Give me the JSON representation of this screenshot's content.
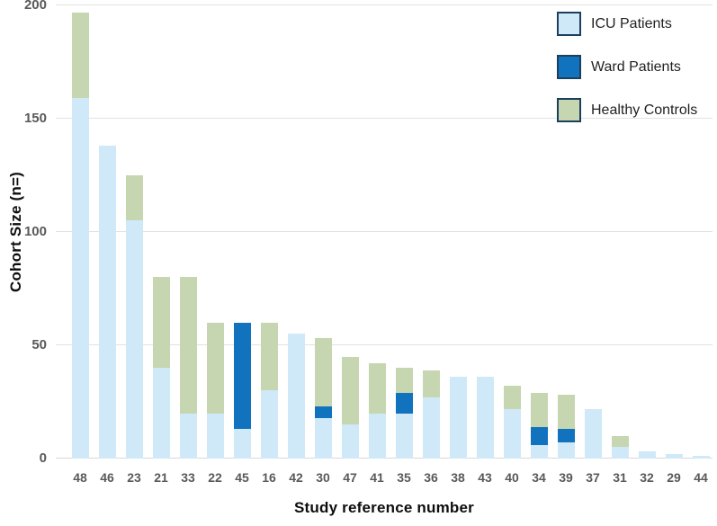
{
  "chart_data": {
    "type": "bar",
    "stacked": true,
    "xlabel": "Study reference number",
    "ylabel": "Cohort Size (n=)",
    "ylim": [
      0,
      200
    ],
    "yticks": [
      0,
      50,
      100,
      150,
      200
    ],
    "grid": true,
    "legend_position": "top-right",
    "categories": [
      "48",
      "46",
      "23",
      "21",
      "33",
      "22",
      "45",
      "16",
      "42",
      "30",
      "47",
      "41",
      "35",
      "36",
      "38",
      "43",
      "40",
      "34",
      "39",
      "37",
      "31",
      "32",
      "29",
      "44"
    ],
    "series": [
      {
        "name": "ICU Patients",
        "color": "#cfe9f8",
        "values": [
          159,
          138,
          105,
          40,
          20,
          20,
          13,
          30,
          55,
          18,
          15,
          20,
          20,
          27,
          36,
          36,
          22,
          6,
          7,
          22,
          5,
          3,
          2,
          1
        ]
      },
      {
        "name": "Ward Patients",
        "color": "#1172bd",
        "values": [
          0,
          0,
          0,
          0,
          0,
          0,
          47,
          0,
          0,
          5,
          0,
          0,
          9,
          0,
          0,
          0,
          0,
          8,
          6,
          0,
          0,
          0,
          0,
          0
        ]
      },
      {
        "name": "Healthy Controls",
        "color": "#c5d6b0",
        "values": [
          38,
          0,
          20,
          40,
          60,
          40,
          0,
          30,
          0,
          30,
          30,
          22,
          11,
          12,
          0,
          0,
          10,
          15,
          15,
          0,
          5,
          0,
          0,
          0
        ]
      }
    ],
    "colors": {
      "gridline": "#e2e2e2",
      "axis_line": "#d8d8d8",
      "tick_label": "#595959",
      "axis_title": "#0d0d0d",
      "legend_swatch_border": "#1c3f5e",
      "legend_text": "#222222",
      "background": "#ffffff"
    }
  }
}
